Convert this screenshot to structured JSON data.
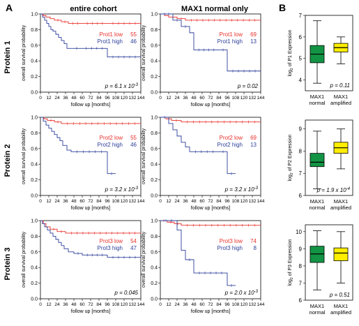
{
  "panel_labels": {
    "a": "A",
    "b": "B"
  },
  "column_titles": [
    "entire cohort",
    "MAX1 normal only"
  ],
  "row_titles": [
    "Protein 1",
    "Protein 2",
    "Protein 3"
  ],
  "km_axis": {
    "ylabel": "overall survival probability",
    "xlabel": "follow up [months]",
    "yticks": [
      "0.0",
      "0.2",
      "0.4",
      "0.6",
      "0.8",
      "1.0"
    ],
    "xticks": [
      "0",
      "12",
      "24",
      "36",
      "48",
      "60",
      "72",
      "84",
      "96",
      "108",
      "120",
      "132",
      "144"
    ]
  },
  "colors": {
    "low": "#e8302a",
    "high": "#2d3f9a",
    "normal_box": "#129444",
    "amplified_box": "#ffee00"
  },
  "chart_data": [
    {
      "type": "line",
      "row": 0,
      "col": 0,
      "xlim": [
        0,
        144
      ],
      "ylim": [
        0,
        1
      ],
      "grid": false,
      "legend": [
        {
          "label": "Prot1 low",
          "n": "55"
        },
        {
          "label": "Prot1 high",
          "n": "46"
        }
      ],
      "pvalue": "p = 6.1 x 10",
      "pvalue_exp": "-3",
      "series": [
        {
          "name": "Prot1 low",
          "group": "low",
          "x": [
            0,
            4,
            8,
            14,
            20,
            30,
            40,
            60,
            96,
            144
          ],
          "y": [
            1.0,
            0.98,
            0.96,
            0.94,
            0.92,
            0.9,
            0.88,
            0.88,
            0.88,
            0.88
          ]
        },
        {
          "name": "Prot1 high",
          "group": "high",
          "x": [
            0,
            3,
            6,
            9,
            12,
            15,
            18,
            22,
            26,
            30,
            34,
            38,
            46,
            58,
            96,
            144
          ],
          "y": [
            1.0,
            0.96,
            0.92,
            0.88,
            0.84,
            0.8,
            0.78,
            0.74,
            0.7,
            0.66,
            0.62,
            0.56,
            0.56,
            0.56,
            0.45,
            0.45
          ]
        }
      ]
    },
    {
      "type": "line",
      "row": 0,
      "col": 1,
      "xlim": [
        0,
        144
      ],
      "ylim": [
        0,
        1
      ],
      "grid": false,
      "legend": [
        {
          "label": "Prot1 low",
          "n": "69"
        },
        {
          "label": "Prot1 high",
          "n": "13"
        }
      ],
      "pvalue": "p = 0.02",
      "pvalue_exp": "",
      "series": [
        {
          "name": "Prot1 low",
          "group": "low",
          "x": [
            0,
            6,
            12,
            24,
            36,
            144
          ],
          "y": [
            1.0,
            0.98,
            0.96,
            0.94,
            0.92,
            0.92
          ]
        },
        {
          "name": "Prot1 high",
          "group": "high",
          "x": [
            0,
            18,
            30,
            42,
            48,
            84,
            96,
            144
          ],
          "y": [
            1.0,
            0.92,
            0.84,
            0.76,
            0.54,
            0.54,
            0.27,
            0.27
          ]
        }
      ]
    },
    {
      "type": "line",
      "row": 1,
      "col": 0,
      "xlim": [
        0,
        144
      ],
      "ylim": [
        0,
        1
      ],
      "grid": false,
      "legend": [
        {
          "label": "Prot2 low",
          "n": "55"
        },
        {
          "label": "Prot2 high",
          "n": "46"
        }
      ],
      "pvalue": "p = 3.2 x 10",
      "pvalue_exp": "-3",
      "series": [
        {
          "name": "Prot2 low",
          "group": "low",
          "x": [
            0,
            5,
            10,
            20,
            30,
            144
          ],
          "y": [
            1.0,
            0.98,
            0.96,
            0.94,
            0.92,
            0.92
          ]
        },
        {
          "name": "Prot2 high",
          "group": "high",
          "x": [
            0,
            4,
            8,
            12,
            16,
            20,
            24,
            28,
            32,
            38,
            44,
            96,
            108
          ],
          "y": [
            1.0,
            0.95,
            0.9,
            0.86,
            0.82,
            0.78,
            0.74,
            0.7,
            0.64,
            0.58,
            0.56,
            0.28,
            0.28
          ]
        }
      ]
    },
    {
      "type": "line",
      "row": 1,
      "col": 1,
      "xlim": [
        0,
        144
      ],
      "ylim": [
        0,
        1
      ],
      "grid": false,
      "legend": [
        {
          "label": "Prot2 low",
          "n": "69"
        },
        {
          "label": "Prot2 high",
          "n": "13"
        }
      ],
      "pvalue": "p = 3.2 x 10",
      "pvalue_exp": "-3",
      "series": [
        {
          "name": "Prot2 low",
          "group": "low",
          "x": [
            0,
            8,
            16,
            30,
            144
          ],
          "y": [
            1.0,
            0.98,
            0.96,
            0.94,
            0.94
          ]
        },
        {
          "name": "Prot2 high",
          "group": "high",
          "x": [
            0,
            12,
            18,
            24,
            30,
            36,
            42,
            84,
            96,
            108
          ],
          "y": [
            1.0,
            0.92,
            0.84,
            0.76,
            0.68,
            0.62,
            0.56,
            0.56,
            0.28,
            0.28
          ]
        }
      ]
    },
    {
      "type": "line",
      "row": 2,
      "col": 0,
      "xlim": [
        0,
        144
      ],
      "ylim": [
        0,
        1
      ],
      "grid": false,
      "legend": [
        {
          "label": "Prot3 low",
          "n": "54"
        },
        {
          "label": "Prot3 high",
          "n": "47"
        }
      ],
      "pvalue": "p = 0.045",
      "pvalue_exp": "",
      "series": [
        {
          "name": "Prot3 low",
          "group": "low",
          "x": [
            0,
            4,
            8,
            14,
            24,
            36,
            144
          ],
          "y": [
            1.0,
            0.96,
            0.92,
            0.89,
            0.86,
            0.84,
            0.84
          ]
        },
        {
          "name": "Prot3 high",
          "group": "high",
          "x": [
            0,
            3,
            6,
            10,
            14,
            18,
            22,
            26,
            30,
            34,
            40,
            48,
            60,
            96,
            144
          ],
          "y": [
            1.0,
            0.96,
            0.92,
            0.88,
            0.84,
            0.8,
            0.76,
            0.72,
            0.68,
            0.64,
            0.6,
            0.58,
            0.56,
            0.53,
            0.53
          ]
        }
      ]
    },
    {
      "type": "line",
      "row": 2,
      "col": 1,
      "xlim": [
        0,
        144
      ],
      "ylim": [
        0,
        1
      ],
      "grid": false,
      "legend": [
        {
          "label": "Prot3 low",
          "n": "74"
        },
        {
          "label": "Prot3 high",
          "n": "8"
        }
      ],
      "pvalue": "p = 2.0 x 10",
      "pvalue_exp": "-3",
      "series": [
        {
          "name": "Prot3 low",
          "group": "low",
          "x": [
            0,
            10,
            20,
            30,
            144
          ],
          "y": [
            1.0,
            0.98,
            0.96,
            0.94,
            0.94
          ]
        },
        {
          "name": "Prot3 high",
          "group": "high",
          "x": [
            0,
            24,
            30,
            36,
            48,
            96,
            108
          ],
          "y": [
            1.0,
            0.88,
            0.62,
            0.5,
            0.33,
            0.17,
            0.17
          ]
        }
      ]
    },
    {
      "type": "box",
      "row": 0,
      "ylabel_base": "log",
      "ylabel_sub": "2",
      "ylabel_rest": " of P1 Expression",
      "ylim": [
        3.5,
        7
      ],
      "yticks": [
        4,
        5,
        6,
        7
      ],
      "pvalue": "p = 0.11",
      "pvalue_exp": "",
      "categories": [
        [
          "MAX1",
          "normal"
        ],
        [
          "MAX1",
          "amplified"
        ]
      ],
      "boxes": [
        {
          "min": 3.85,
          "q1": 4.8,
          "median": 5.2,
          "q3": 5.6,
          "max": 6.75
        },
        {
          "min": 4.75,
          "q1": 5.3,
          "median": 5.5,
          "q3": 5.7,
          "max": 6.0
        }
      ]
    },
    {
      "type": "box",
      "row": 1,
      "ylabel_base": "log",
      "ylabel_sub": "2",
      "ylabel_rest": " of P2 Expression",
      "ylim": [
        6,
        9.4
      ],
      "yticks": [
        6,
        7,
        8,
        9
      ],
      "pvalue": "p = 1.9 x 10",
      "pvalue_exp": "-4",
      "categories": [
        [
          "MAX1",
          "normal"
        ],
        [
          "MAX1",
          "amplified"
        ]
      ],
      "boxes": [
        {
          "min": 6.3,
          "q1": 7.3,
          "median": 7.5,
          "q3": 7.9,
          "max": 8.9
        },
        {
          "min": 7.2,
          "q1": 7.9,
          "median": 8.15,
          "q3": 8.4,
          "max": 9.0
        }
      ]
    },
    {
      "type": "box",
      "row": 2,
      "ylabel_base": "log",
      "ylabel_sub": "2",
      "ylabel_rest": " of P3 Expression",
      "ylim": [
        6,
        10.4
      ],
      "yticks": [
        6,
        7,
        8,
        9,
        10
      ],
      "pvalue": "p = 0.51",
      "pvalue_exp": "",
      "categories": [
        [
          "MAX1",
          "normal"
        ],
        [
          "MAX1",
          "amplified"
        ]
      ],
      "boxes": [
        {
          "min": 6.6,
          "q1": 8.2,
          "median": 8.7,
          "q3": 9.15,
          "max": 10.05
        },
        {
          "min": 7.0,
          "q1": 8.3,
          "median": 8.75,
          "q3": 9.05,
          "max": 10.0
        }
      ]
    }
  ]
}
